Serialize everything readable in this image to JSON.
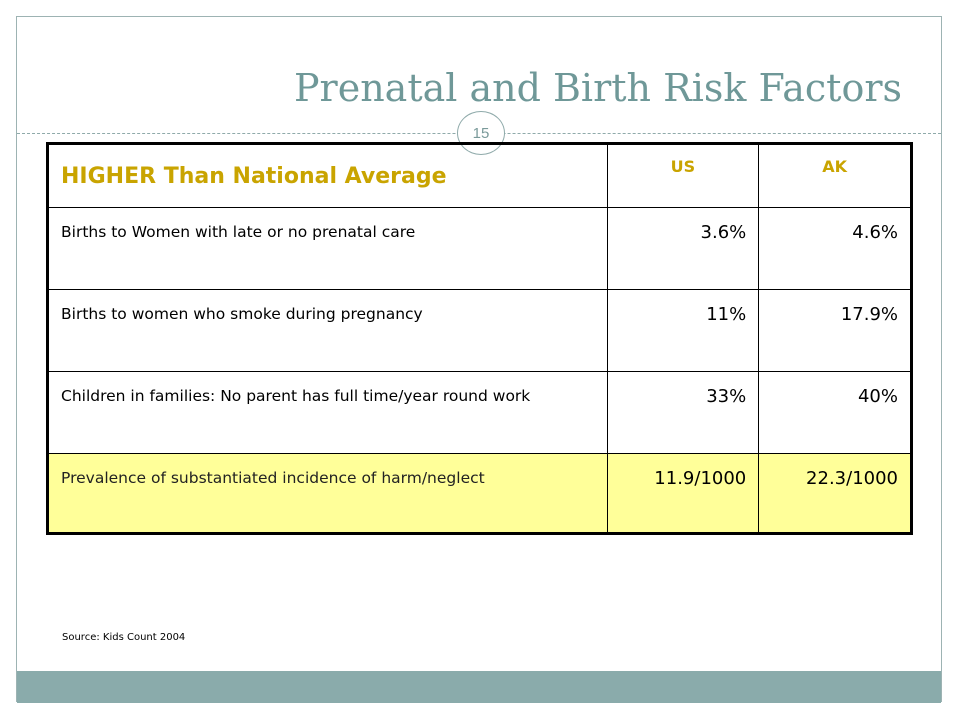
{
  "slide": {
    "title": "Prenatal and Birth Risk Factors",
    "page_number": "15",
    "source": "Source: Kids Count 2004"
  },
  "table": {
    "header": {
      "label": "HIGHER Than National Average",
      "us": "US",
      "ak": "AK"
    },
    "rows": [
      {
        "label": "Births to Women with late or no prenatal care",
        "us": "3.6%",
        "ak": "4.6%",
        "highlighted": false
      },
      {
        "label": "Births to women who smoke during pregnancy",
        "us": "11%",
        "ak": "17.9%",
        "highlighted": false
      },
      {
        "label": "Children in families: No parent has full time/year round work",
        "us": "33%",
        "ak": "40%",
        "highlighted": false
      },
      {
        "label": "Prevalence of substantiated incidence of harm/neglect",
        "us": "11.9/1000",
        "ak": "22.3/1000",
        "highlighted": true
      }
    ]
  },
  "colors": {
    "title": "#6f9898",
    "header_text": "#c9a400",
    "highlight_row": "#ffff99",
    "bottom_band": "#8aabab"
  }
}
